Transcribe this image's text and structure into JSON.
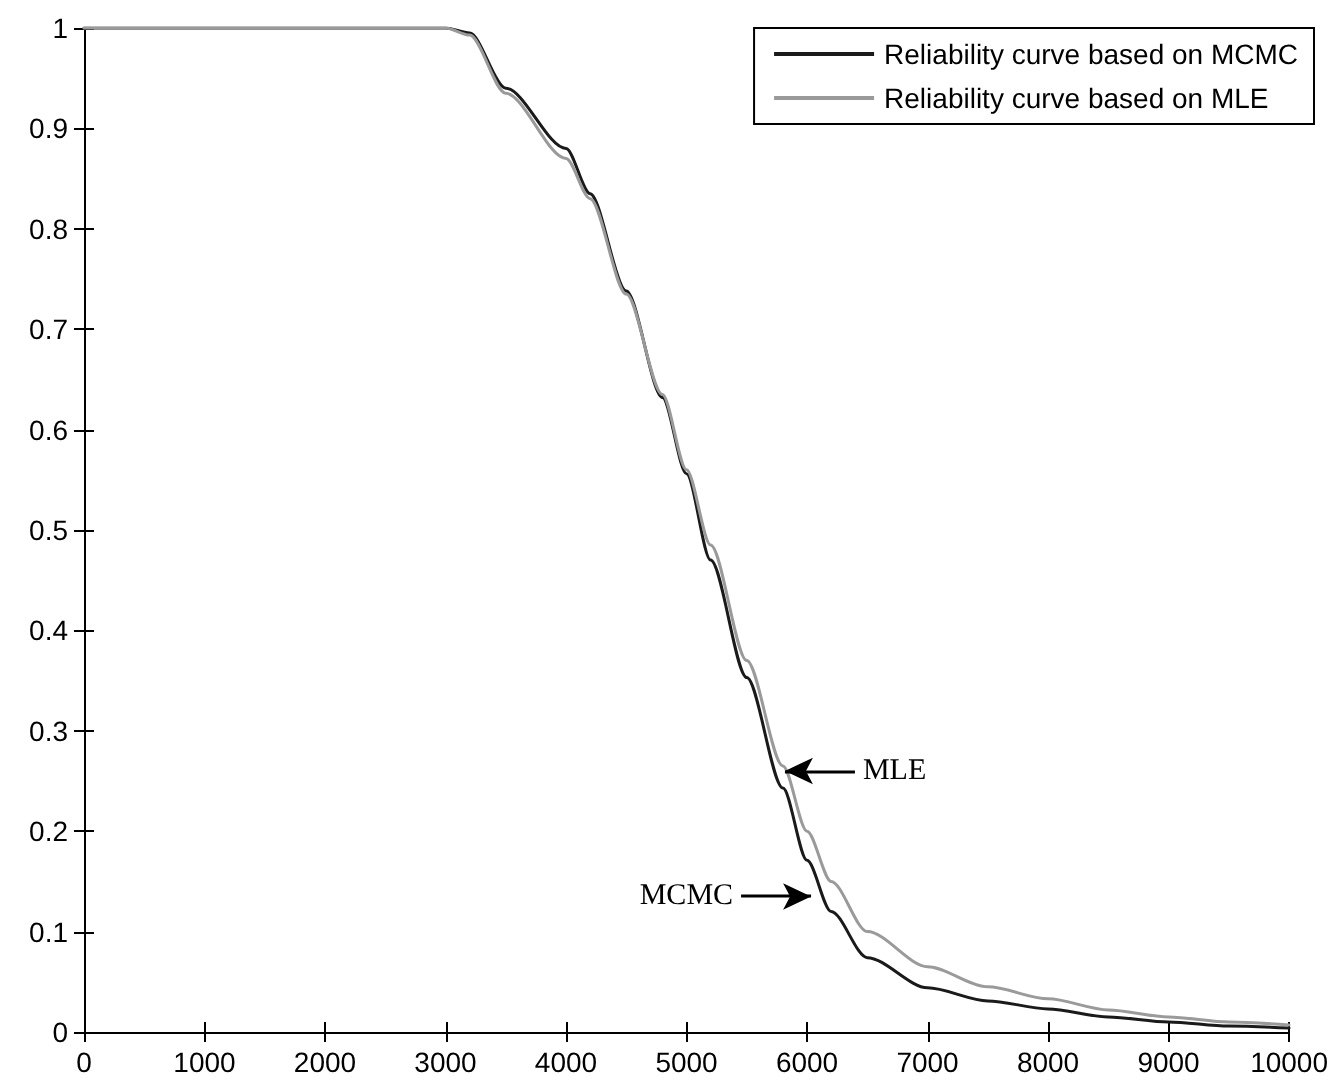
{
  "chart_data": {
    "type": "line",
    "xlim": [
      0,
      10000
    ],
    "ylim": [
      0,
      1
    ],
    "xticks": [
      0,
      1000,
      2000,
      3000,
      4000,
      5000,
      6000,
      7000,
      8000,
      9000,
      10000
    ],
    "yticks": [
      0,
      0.1,
      0.2,
      0.3,
      0.4,
      0.5,
      0.6,
      0.7,
      0.8,
      0.9,
      1
    ],
    "grid": false,
    "legend": "top right",
    "marker": "none",
    "line_style": "solid",
    "series": [
      {
        "name": "Reliability curve based on MCMC",
        "color": "#1a1a1a",
        "x": [
          0,
          3000,
          3200,
          3500,
          4000,
          4200,
          4500,
          4800,
          5000,
          5200,
          5500,
          5800,
          6000,
          6200,
          6500,
          7000,
          7500,
          8000,
          8500,
          9000,
          9500,
          10000
        ],
        "values": [
          1,
          1,
          0.995,
          0.94,
          0.88,
          0.835,
          0.738,
          0.632,
          0.556,
          0.47,
          0.353,
          0.243,
          0.171,
          0.12,
          0.074,
          0.044,
          0.031,
          0.023,
          0.015,
          0.01,
          0.006,
          0.004
        ]
      },
      {
        "name": "Reliability curve based on MLE",
        "color": "#9a9a9a",
        "x": [
          0,
          3000,
          3200,
          3500,
          4000,
          4200,
          4500,
          4800,
          5000,
          5200,
          5500,
          5800,
          6000,
          6200,
          6500,
          7000,
          7500,
          8000,
          8500,
          9000,
          9500,
          10000
        ],
        "values": [
          1,
          1,
          0.993,
          0.935,
          0.87,
          0.83,
          0.735,
          0.635,
          0.56,
          0.485,
          0.37,
          0.265,
          0.2,
          0.15,
          0.1,
          0.065,
          0.045,
          0.033,
          0.022,
          0.015,
          0.01,
          0.007
        ]
      }
    ],
    "annotations": [
      {
        "text": "MLE",
        "x": 5800,
        "y": 0.26
      },
      {
        "text": "MCMC",
        "x": 6050,
        "y": 0.135
      }
    ]
  }
}
